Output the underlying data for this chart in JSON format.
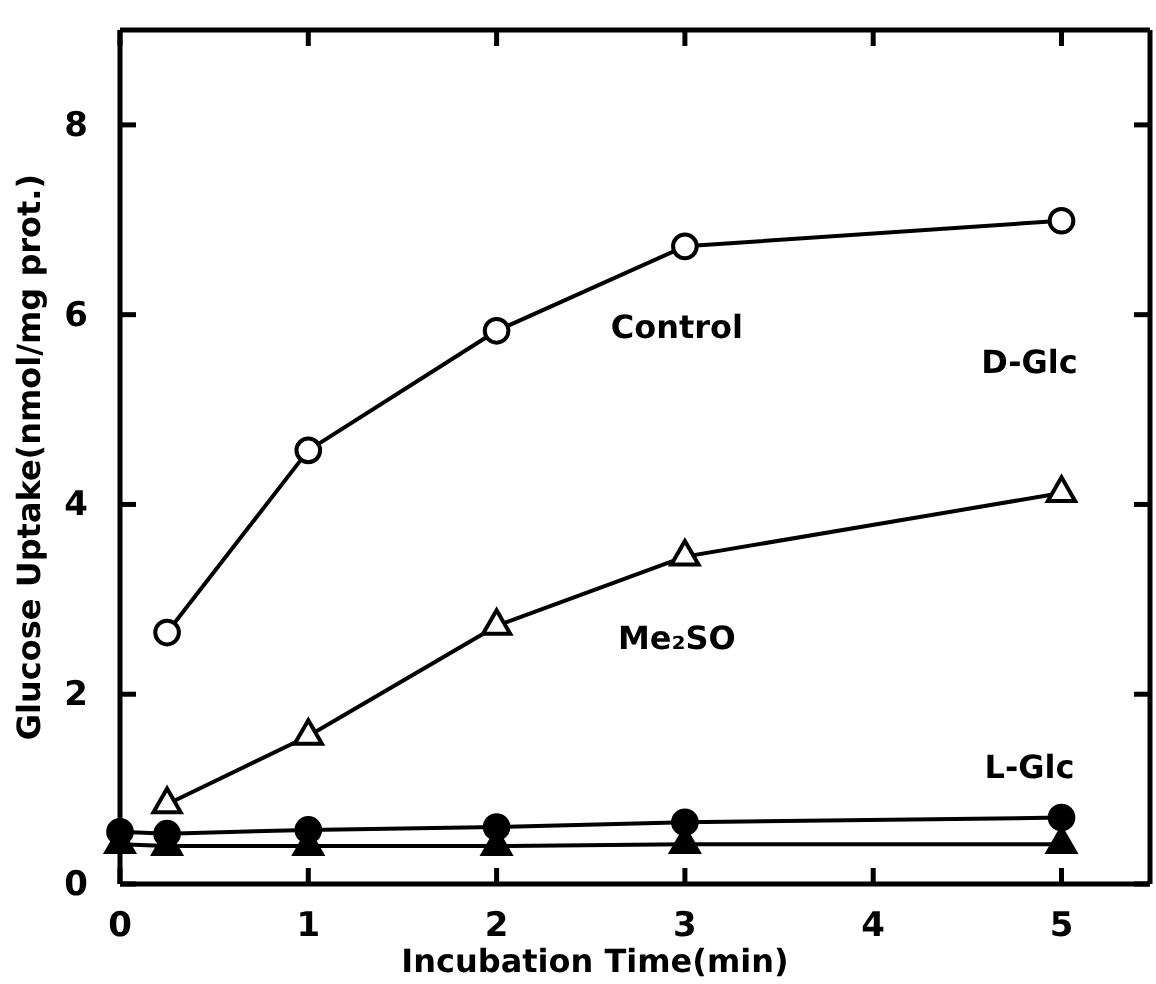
{
  "chart_data": {
    "type": "line",
    "xlabel": "Incubation Time(min)",
    "ylabel": "Glucose Uptake(nmol/mg prot.)",
    "xlim": [
      0,
      5.47
    ],
    "xticks": [
      0,
      1,
      2,
      3,
      4,
      5
    ],
    "ylim": [
      0,
      9
    ],
    "yticks": [
      0,
      2,
      4,
      6,
      8
    ],
    "series": [
      {
        "name": "Control",
        "x": [
          0.25,
          1,
          2,
          3,
          5
        ],
        "values": [
          2.65,
          4.57,
          5.83,
          6.72,
          6.99
        ],
        "color": "#000000",
        "marker": "circle"
      },
      {
        "name": "Me₂SO",
        "x": [
          0.25,
          1,
          2,
          3,
          5
        ],
        "values": [
          0.84,
          1.56,
          2.72,
          3.45,
          4.12
        ],
        "color": "#000000",
        "marker": "triangle"
      },
      {
        "x": [
          0,
          0.25,
          1,
          2,
          3,
          5
        ],
        "values": [
          0.55,
          0.53,
          0.57,
          0.6,
          0.65,
          0.7
        ],
        "color": "#000000",
        "marker": "circle"
      },
      {
        "x": [
          0,
          0.25,
          1,
          2,
          3,
          5
        ],
        "values": [
          0.42,
          0.4,
          0.4,
          0.4,
          0.42,
          0.42
        ],
        "color": "#000000",
        "marker": "triangle"
      }
    ],
    "annotations": [
      "D-Glc",
      "L-Glc"
    ]
  }
}
